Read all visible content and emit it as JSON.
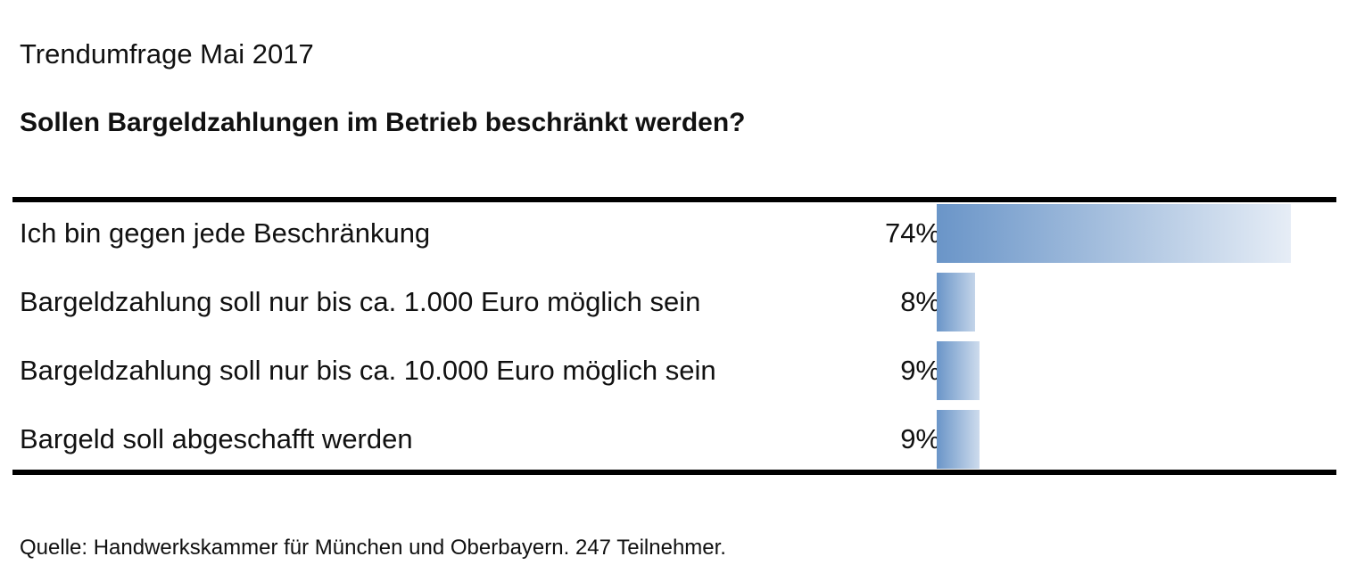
{
  "header": {
    "subtitle": "Trendumfrage Mai 2017",
    "title": "Sollen Bargeldzahlungen im Betrieb beschränkt werden?"
  },
  "chart_data": {
    "type": "bar",
    "orientation": "horizontal",
    "title": "Sollen Bargeldzahlungen im Betrieb beschränkt werden?",
    "subtitle": "Trendumfrage Mai 2017",
    "categories": [
      "Ich bin gegen jede Beschränkung",
      "Bargeldzahlung soll nur bis ca. 1.000 Euro möglich sein",
      "Bargeldzahlung soll nur bis ca. 10.000 Euro möglich sein",
      "Bargeld soll abgeschafft werden"
    ],
    "values": [
      74,
      8,
      9,
      9
    ],
    "value_labels": [
      "74%",
      "8%",
      "9%",
      "9%"
    ],
    "unit": "%",
    "xlim": [
      0,
      100
    ],
    "grid": false,
    "legend": "none",
    "colors": {
      "bar_start": "#6a95c8",
      "bar_end": "#e6edf6",
      "rule": "#000000"
    }
  },
  "footer": {
    "source": "Quelle: Handwerkskammer für München und Oberbayern. 247 Teilnehmer."
  }
}
